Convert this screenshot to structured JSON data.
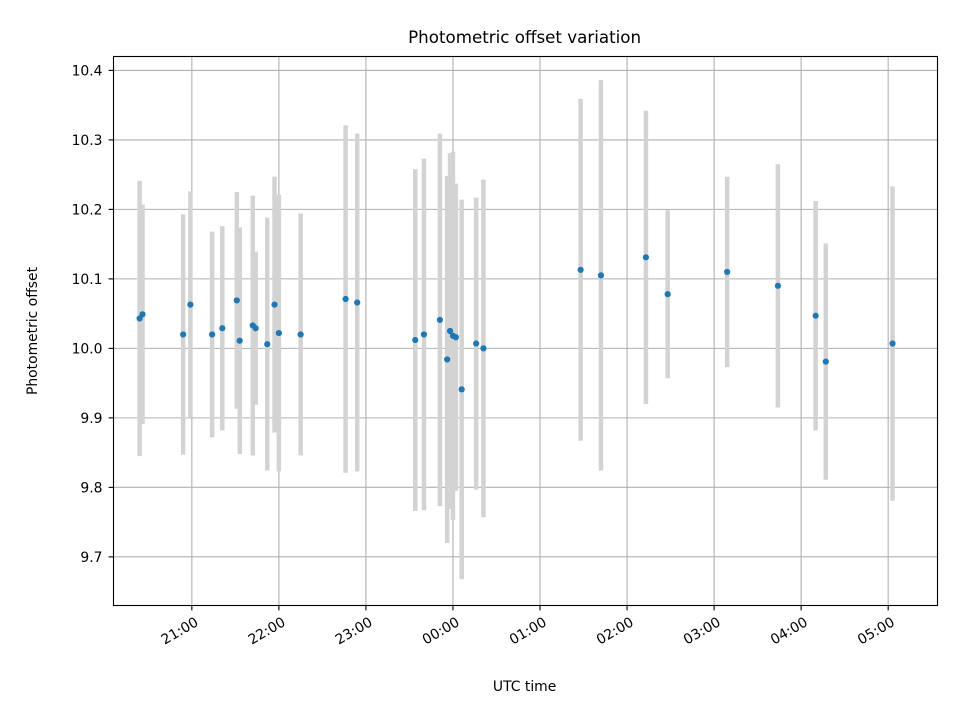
{
  "chart_data": {
    "type": "scatter",
    "title": "Photometric offset variation",
    "xlabel": "UTC time",
    "ylabel": "Photometric offset",
    "x_unit": "UTC time",
    "xlim": [
      "20:06",
      "05:34 (next day)"
    ],
    "ylim": [
      9.63,
      10.42
    ],
    "x_ticks": [
      "21:00",
      "22:00",
      "23:00",
      "00:00",
      "01:00",
      "02:00",
      "03:00",
      "04:00",
      "05:00"
    ],
    "y_ticks": [
      "9.7",
      "9.8",
      "9.9",
      "10.0",
      "10.1",
      "10.2",
      "10.3",
      "10.4"
    ],
    "grid": true,
    "legend": "none",
    "colors": {
      "marker": "#1f77b4",
      "errorbar": "#d3d3d3",
      "grid": "#b0b0b0"
    },
    "series": [
      {
        "points": [
          {
            "t": "20:24",
            "y": 10.043,
            "err": 0.198
          },
          {
            "t": "20:26",
            "y": 10.049,
            "err": 0.158
          },
          {
            "t": "20:54",
            "y": 10.02,
            "err": 0.173
          },
          {
            "t": "20:59",
            "y": 10.063,
            "err": 0.163
          },
          {
            "t": "21:14",
            "y": 10.02,
            "err": 0.148
          },
          {
            "t": "21:21",
            "y": 10.029,
            "err": 0.147
          },
          {
            "t": "21:31",
            "y": 10.069,
            "err": 0.156
          },
          {
            "t": "21:33",
            "y": 10.011,
            "err": 0.163
          },
          {
            "t": "21:42",
            "y": 10.033,
            "err": 0.187
          },
          {
            "t": "21:44",
            "y": 10.029,
            "err": 0.11
          },
          {
            "t": "21:52",
            "y": 10.006,
            "err": 0.182
          },
          {
            "t": "21:57",
            "y": 10.063,
            "err": 0.184
          },
          {
            "t": "22:00",
            "y": 10.022,
            "err": 0.199
          },
          {
            "t": "22:15",
            "y": 10.02,
            "err": 0.174
          },
          {
            "t": "22:46",
            "y": 10.071,
            "err": 0.25
          },
          {
            "t": "22:54",
            "y": 10.066,
            "err": 0.243
          },
          {
            "t": "23:34",
            "y": 10.012,
            "err": 0.246
          },
          {
            "t": "23:40",
            "y": 10.02,
            "err": 0.253
          },
          {
            "t": "23:51",
            "y": 10.041,
            "err": 0.268
          },
          {
            "t": "23:56",
            "y": 9.984,
            "err": 0.264
          },
          {
            "t": "23:58",
            "y": 10.025,
            "err": 0.256
          },
          {
            "t": "00:00",
            "y": 10.018,
            "err": 0.265
          },
          {
            "t": "00:02",
            "y": 10.016,
            "err": 0.221
          },
          {
            "t": "00:06",
            "y": 9.941,
            "err": 0.273
          },
          {
            "t": "00:16",
            "y": 10.007,
            "err": 0.21
          },
          {
            "t": "00:21",
            "y": 10.0,
            "err": 0.243
          },
          {
            "t": "01:28",
            "y": 10.113,
            "err": 0.246
          },
          {
            "t": "01:42",
            "y": 10.105,
            "err": 0.281
          },
          {
            "t": "02:13",
            "y": 10.131,
            "err": 0.211
          },
          {
            "t": "02:28",
            "y": 10.078,
            "err": 0.121
          },
          {
            "t": "03:09",
            "y": 10.11,
            "err": 0.137
          },
          {
            "t": "03:44",
            "y": 10.09,
            "err": 0.175
          },
          {
            "t": "04:10",
            "y": 10.047,
            "err": 0.165
          },
          {
            "t": "04:17",
            "y": 9.981,
            "err": 0.17
          },
          {
            "t": "05:03",
            "y": 10.007,
            "err": 0.226
          }
        ]
      }
    ]
  }
}
